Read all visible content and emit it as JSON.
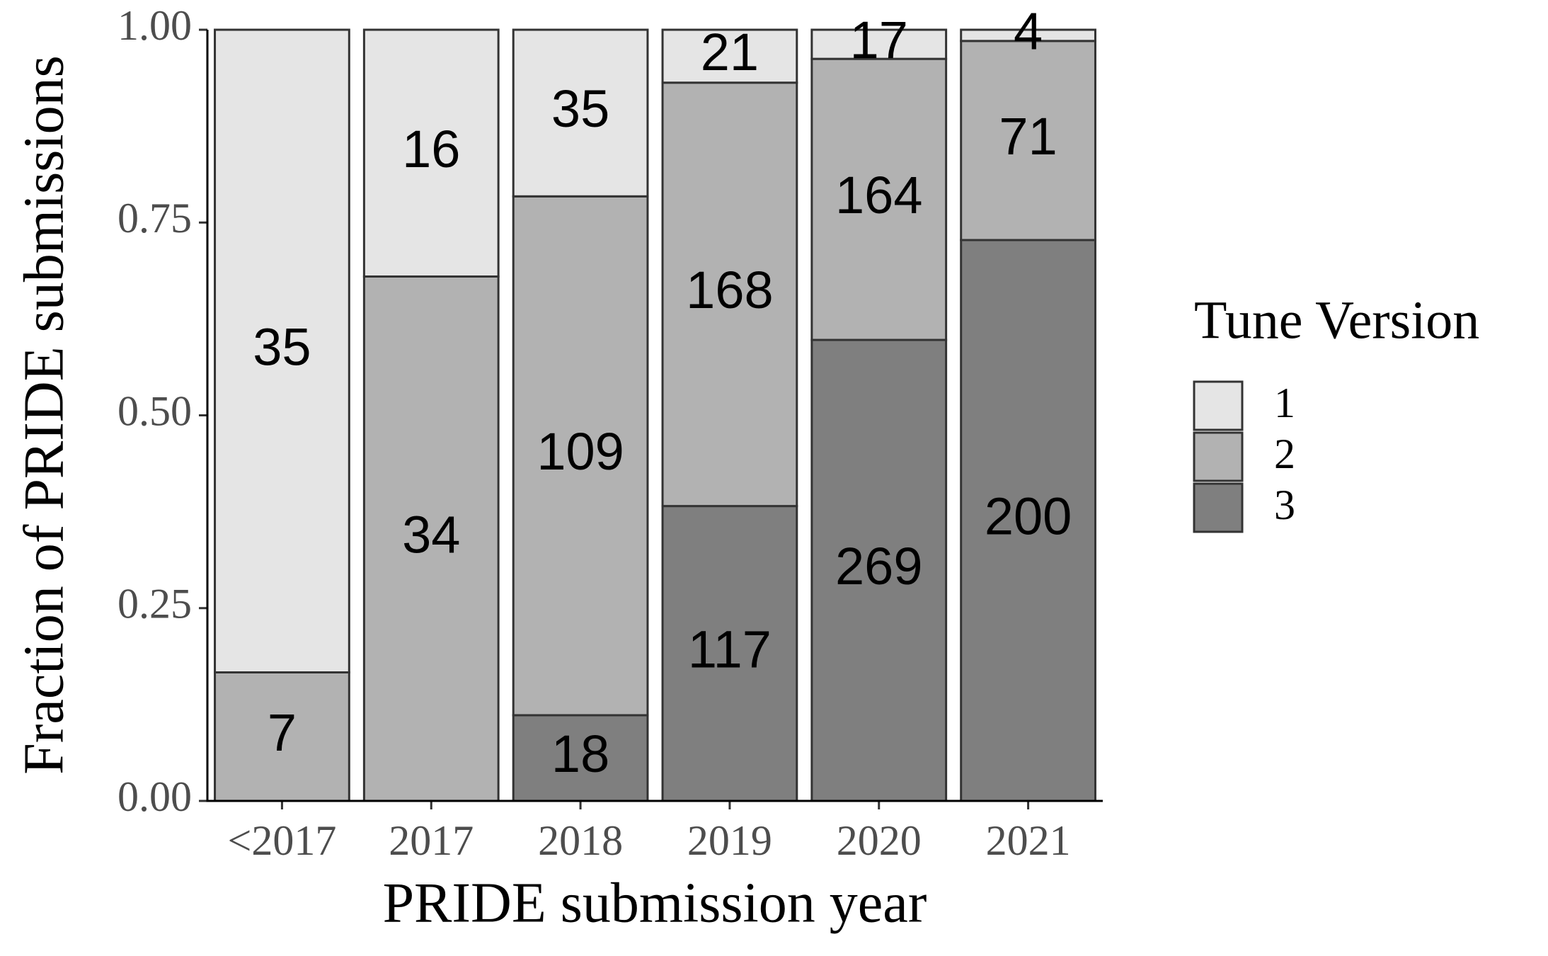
{
  "chart_data": {
    "type": "bar",
    "stacked": true,
    "normalize": true,
    "x_label": "PRIDE submission year",
    "y_label": "Fraction of PRIDE submissions",
    "legend_title": "Tune Version",
    "legend_position": "right",
    "categories": [
      "<2017",
      "2017",
      "2018",
      "2019",
      "2020",
      "2021"
    ],
    "series": [
      {
        "name": "1",
        "color": "#e5e5e5",
        "values": [
          35,
          16,
          35,
          21,
          17,
          4
        ]
      },
      {
        "name": "2",
        "color": "#b2b2b2",
        "values": [
          7,
          34,
          109,
          168,
          164,
          71
        ]
      },
      {
        "name": "3",
        "color": "#7f7f7f",
        "values": [
          null,
          null,
          18,
          117,
          269,
          200
        ]
      }
    ],
    "ylim": [
      0,
      1
    ],
    "yticks": [
      {
        "value": 0,
        "label": "0.00"
      },
      {
        "value": 0.25,
        "label": "0.25"
      },
      {
        "value": 0.5,
        "label": "0.50"
      },
      {
        "value": 0.75,
        "label": "0.75"
      },
      {
        "value": 1,
        "label": "1.00"
      }
    ]
  }
}
